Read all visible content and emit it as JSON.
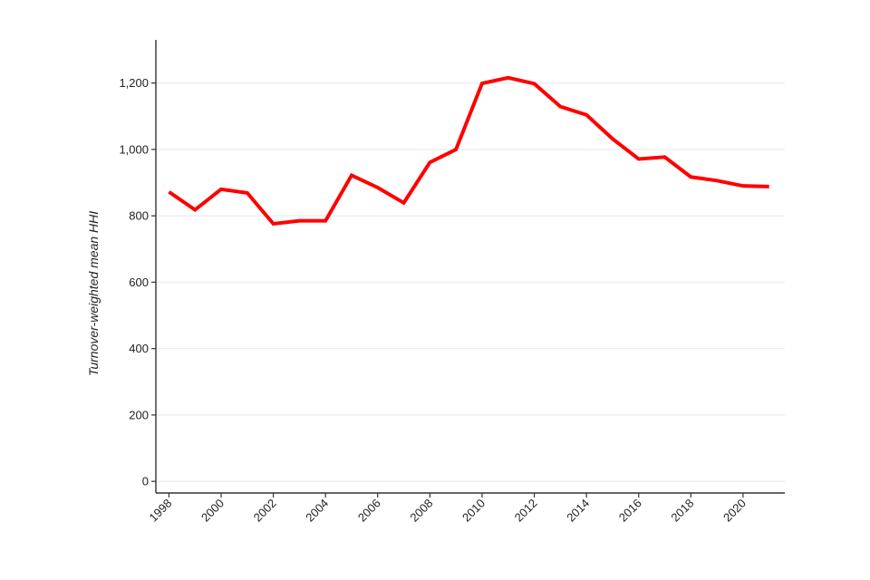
{
  "chart_data": {
    "type": "line",
    "title": "",
    "xlabel": "",
    "ylabel": "Turnover-weighted mean HHI",
    "x": [
      1998,
      1999,
      2000,
      2001,
      2002,
      2003,
      2004,
      2005,
      2006,
      2007,
      2008,
      2009,
      2010,
      2011,
      2012,
      2013,
      2014,
      2015,
      2016,
      2017,
      2018,
      2019,
      2020,
      2021
    ],
    "series": [
      {
        "name": "",
        "values": [
          872,
          818,
          880,
          869,
          776,
          785,
          785,
          922,
          885,
          839,
          961,
          1000,
          1199,
          1216,
          1198,
          1129,
          1104,
          1032,
          971,
          977,
          917,
          906,
          890,
          888
        ],
        "color": "#ff0000"
      }
    ],
    "xticks": [
      1998,
      2000,
      2002,
      2004,
      2006,
      2008,
      2010,
      2012,
      2014,
      2016,
      2018,
      2020
    ],
    "xtick_labels": [
      "1998",
      "2000",
      "2002",
      "2004",
      "2006",
      "2008",
      "2010",
      "2012",
      "2014",
      "2016",
      "2018",
      "2020"
    ],
    "yticks": [
      0,
      200,
      400,
      600,
      800,
      1000,
      1200
    ],
    "ytick_labels": [
      "0",
      "200",
      "400",
      "600",
      "800",
      "1,000",
      "1,200"
    ],
    "xlim": [
      1997.5,
      2021.6
    ],
    "ylim": [
      -35,
      1330
    ],
    "grid": "horizontal",
    "gridline_color": "#e6efef",
    "axis_color": "#333333",
    "legend": "none"
  }
}
